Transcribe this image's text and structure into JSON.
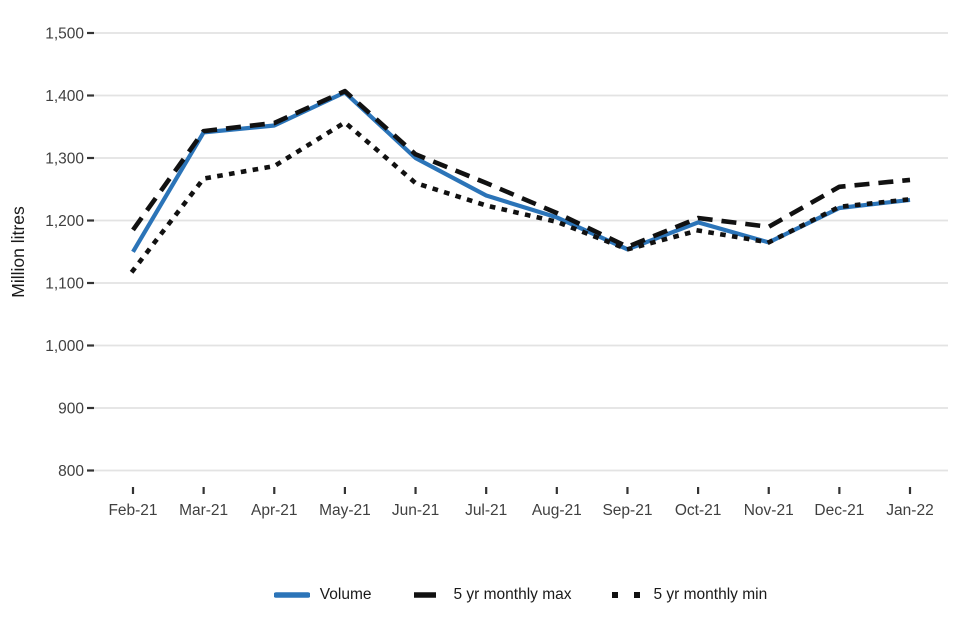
{
  "chart_data": {
    "type": "line",
    "title": "",
    "xlabel": "",
    "ylabel": "Million litres",
    "ylim": [
      800,
      1500
    ],
    "grid": true,
    "legend_position": "bottom",
    "background_color": "#ffffff",
    "gridline_color": "#e3e3e3",
    "tick_color": "#333333",
    "tick_label_color": "#404040",
    "categories": [
      "Feb-21",
      "Mar-21",
      "Apr-21",
      "May-21",
      "Jun-21",
      "Jul-21",
      "Aug-21",
      "Sep-21",
      "Oct-21",
      "Nov-21",
      "Dec-21",
      "Jan-22"
    ],
    "yticks": [
      {
        "value": 800,
        "label": "800"
      },
      {
        "value": 900,
        "label": "900"
      },
      {
        "value": 1000,
        "label": "1,000"
      },
      {
        "value": 1100,
        "label": "1,100"
      },
      {
        "value": 1200,
        "label": "1,200"
      },
      {
        "value": 1300,
        "label": "1,300"
      },
      {
        "value": 1400,
        "label": "1,400"
      },
      {
        "value": 1500,
        "label": "1,500"
      }
    ],
    "series": [
      {
        "name": "Volume",
        "style": "solid",
        "color": "#2b74b8",
        "values": [
          1150,
          1341,
          1352,
          1405,
          1300,
          1240,
          1205,
          1154,
          1197,
          1165,
          1220,
          1233
        ]
      },
      {
        "name": "5 yr monthly max",
        "style": "dashed",
        "color": "#111111",
        "values": [
          1185,
          1343,
          1356,
          1407,
          1306,
          1260,
          1212,
          1158,
          1204,
          1190,
          1254,
          1265
        ]
      },
      {
        "name": "5 yr monthly min",
        "style": "dotted",
        "color": "#111111",
        "values": [
          1120,
          1267,
          1287,
          1357,
          1260,
          1224,
          1198,
          1154,
          1184,
          1165,
          1222,
          1234
        ]
      }
    ]
  }
}
